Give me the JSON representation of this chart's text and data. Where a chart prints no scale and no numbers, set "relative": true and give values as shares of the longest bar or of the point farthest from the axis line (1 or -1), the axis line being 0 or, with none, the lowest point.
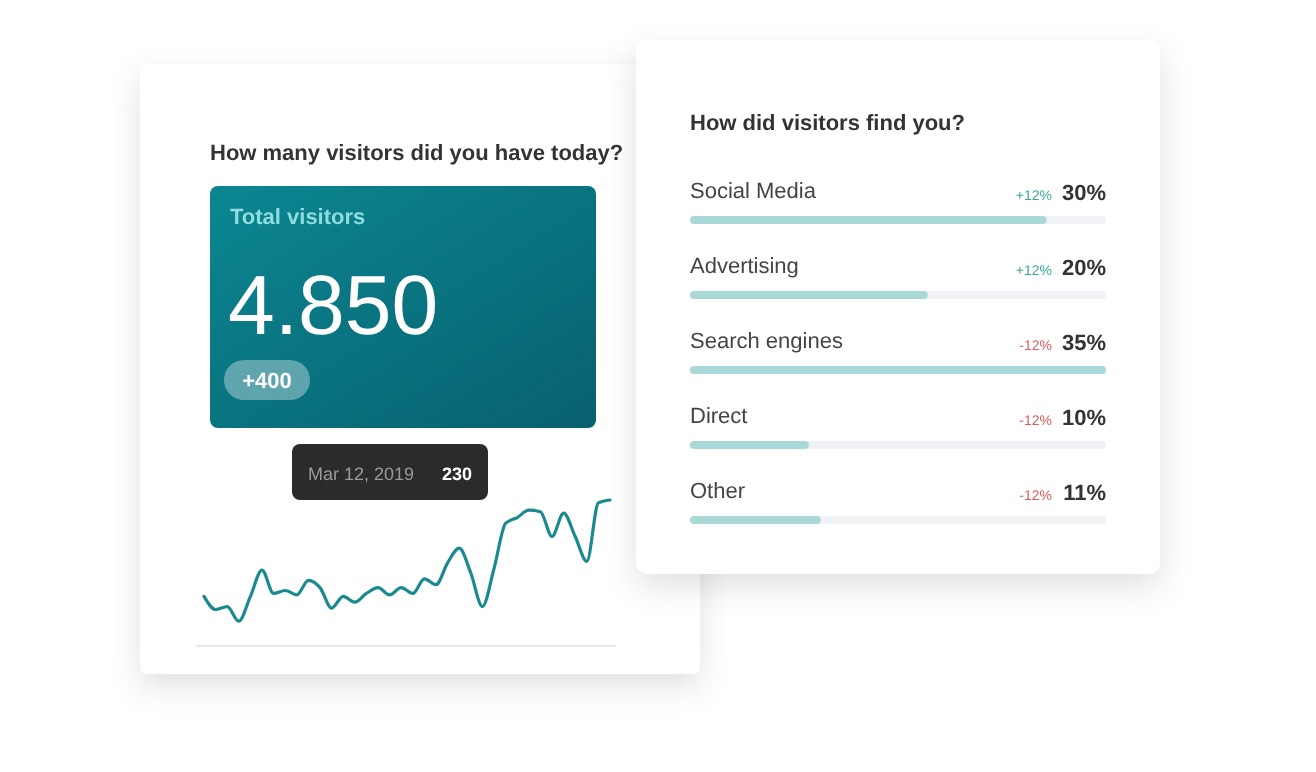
{
  "chart_data": [
    {
      "type": "other",
      "title": "How many visitors did you have today?",
      "annotations": [
        "Total visitors",
        "4.850",
        "+400"
      ]
    },
    {
      "type": "line",
      "relative": true,
      "color": "#1a8a8f",
      "categories": [
        null,
        null,
        null,
        null,
        null,
        null,
        null,
        null,
        null,
        null,
        null,
        null,
        null,
        null,
        null,
        null,
        null,
        null,
        null,
        null,
        null,
        null,
        null,
        null,
        null,
        null,
        null,
        null,
        null,
        null,
        null,
        null,
        null,
        null,
        null,
        null
      ],
      "values": [
        0.34,
        0.25,
        0.27,
        0.17,
        0.34,
        0.52,
        0.36,
        0.38,
        0.35,
        0.45,
        0.4,
        0.26,
        0.34,
        0.3,
        0.36,
        0.4,
        0.35,
        0.4,
        0.36,
        0.46,
        0.42,
        0.57,
        0.67,
        0.5,
        0.27,
        0.53,
        0.84,
        0.88,
        0.93,
        0.92,
        0.75,
        0.91,
        0.75,
        0.58,
        0.98,
        1
      ],
      "annotations": [
        "Mar 12, 2019",
        "230"
      ]
    },
    {
      "type": "bar",
      "orientation": "horizontal",
      "title": "How did visitors find you?",
      "categories": [
        "Social Media",
        "Advertising",
        "Search engines",
        "Direct",
        "Other"
      ],
      "values": [
        30,
        20,
        35,
        10,
        11
      ],
      "color": "#a8d8d8",
      "value_labels": [
        "30%",
        "20%",
        "35%",
        "10%",
        "11%"
      ],
      "annotations": [
        "+12%",
        "+12%",
        "-12%",
        "-12%",
        "-12%"
      ]
    }
  ]
}
